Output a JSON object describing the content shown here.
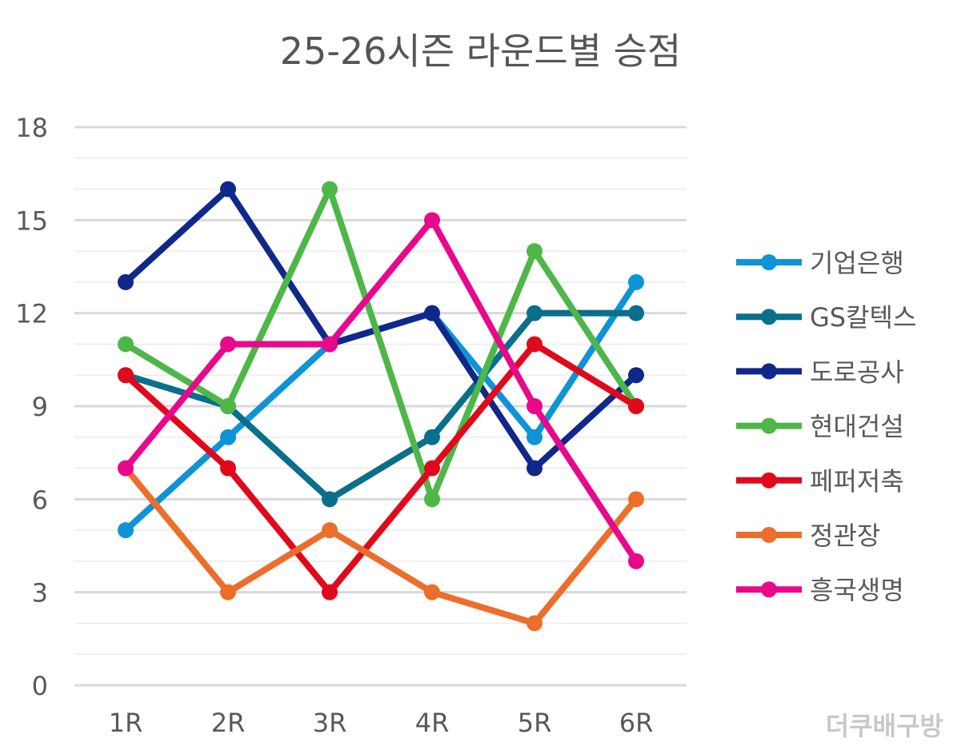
{
  "chart_data": {
    "type": "line",
    "title": "25-26시즌 라운드별 승점",
    "xlabel": "",
    "ylabel": "",
    "categories": [
      "1R",
      "2R",
      "3R",
      "4R",
      "5R",
      "6R"
    ],
    "ylim": [
      0,
      18
    ],
    "yticks": [
      0,
      3,
      6,
      9,
      12,
      15,
      18
    ],
    "grid": true,
    "legend_position": "right",
    "series": [
      {
        "name": "기업은행",
        "color": "#0e93d7",
        "values": [
          5,
          8,
          11,
          12,
          8,
          13
        ]
      },
      {
        "name": "GS칼텍스",
        "color": "#0a6f8a",
        "values": [
          10,
          9,
          6,
          8,
          12,
          12
        ]
      },
      {
        "name": "도로공사",
        "color": "#10288a",
        "values": [
          13,
          16,
          11,
          12,
          7,
          10
        ]
      },
      {
        "name": "현대건설",
        "color": "#4db748",
        "values": [
          11,
          9,
          16,
          6,
          14,
          9
        ]
      },
      {
        "name": "페퍼저축",
        "color": "#e0091b",
        "values": [
          10,
          7,
          3,
          7,
          11,
          9
        ]
      },
      {
        "name": "정관장",
        "color": "#ec6e2b",
        "values": [
          7,
          3,
          5,
          3,
          2,
          6
        ]
      },
      {
        "name": "흥국생명",
        "color": "#e8088c",
        "values": [
          7,
          11,
          11,
          15,
          9,
          4
        ]
      }
    ]
  },
  "watermark": "더쿠배구방"
}
